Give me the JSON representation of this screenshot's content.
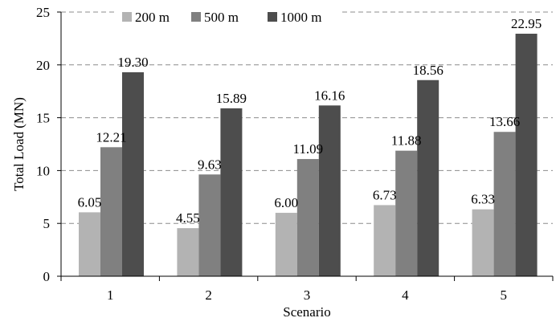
{
  "chart_data": {
    "type": "bar",
    "title": "",
    "xlabel": "Scenario",
    "ylabel": "Total Load (MN)",
    "categories": [
      "1",
      "2",
      "3",
      "4",
      "5"
    ],
    "ylim": [
      0,
      25
    ],
    "yticks": [
      0,
      5,
      10,
      15,
      20,
      25
    ],
    "grid": "horizontal dashed",
    "legend_position": "top",
    "series": [
      {
        "name": "200 m",
        "color": "#b3b3b3",
        "values": [
          6.05,
          4.55,
          6.0,
          6.73,
          6.33
        ],
        "labels": [
          "6.05",
          "4.55",
          "6.00",
          "6.73",
          "6.33"
        ]
      },
      {
        "name": "500 m",
        "color": "#808080",
        "values": [
          12.21,
          9.63,
          11.09,
          11.88,
          13.66
        ],
        "labels": [
          "12.21",
          "9.63",
          "11.09",
          "11.88",
          "13.66"
        ]
      },
      {
        "name": "1000 m",
        "color": "#4d4d4d",
        "values": [
          19.3,
          15.89,
          16.16,
          18.56,
          22.95
        ],
        "labels": [
          "19.30",
          "15.89",
          "16.16",
          "18.56",
          "22.95"
        ]
      }
    ]
  }
}
